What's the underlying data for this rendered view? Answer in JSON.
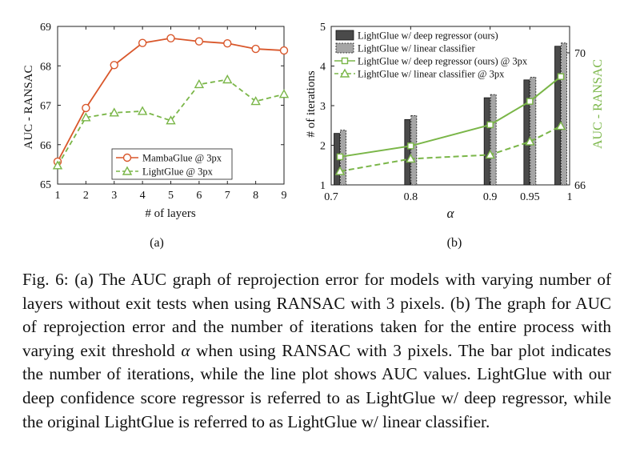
{
  "chart_data": [
    {
      "type": "line",
      "panel_label": "(a)",
      "xlabel": "# of layers",
      "ylabel": "AUC - RANSAC",
      "x": [
        1,
        2,
        3,
        4,
        5,
        6,
        7,
        8,
        9
      ],
      "xlim": [
        1,
        9
      ],
      "ylim": [
        65,
        69
      ],
      "xticks": [
        "1",
        "2",
        "3",
        "4",
        "5",
        "6",
        "7",
        "8",
        "9"
      ],
      "yticks": [
        "65",
        "66",
        "67",
        "68",
        "69"
      ],
      "grid": false,
      "legend_position": "bottom-center",
      "series": [
        {
          "name": "MambaGlue @ 3px",
          "color": "#d9572b",
          "marker": "circle",
          "dash": "solid",
          "values": [
            65.57,
            66.93,
            68.02,
            68.58,
            68.7,
            68.62,
            68.57,
            68.43,
            68.39
          ]
        },
        {
          "name": "LightGlue @ 3px",
          "color": "#7ab648",
          "marker": "triangle",
          "dash": "dashed",
          "values": [
            65.47,
            66.69,
            66.81,
            66.85,
            66.61,
            67.53,
            67.65,
            67.1,
            67.28
          ]
        }
      ]
    },
    {
      "type": "bar",
      "panel_label": "(b)",
      "xlabel": "α",
      "ylabel": "# of iterations",
      "ylabel_right": "AUC - RANSAC",
      "categories": [
        "0.7",
        "0.8",
        "0.9",
        "0.95",
        "1"
      ],
      "x": [
        0.7,
        0.8,
        0.9,
        0.95,
        1.0
      ],
      "xlim": [
        0.7,
        1.0
      ],
      "ylim": [
        1,
        5
      ],
      "ylim_right": [
        66,
        70.8
      ],
      "yticks": [
        "1",
        "2",
        "3",
        "4",
        "5"
      ],
      "yticks_right": [
        "66",
        "70"
      ],
      "grid": false,
      "legend_position": "top-left",
      "bar_series": [
        {
          "name": "LightGlue w/ deep regressor (ours)",
          "color": "#555555",
          "style": "solid",
          "values": [
            2.3,
            2.65,
            3.2,
            3.65,
            4.5
          ]
        },
        {
          "name": "LightGlue w/ linear classifier",
          "color": "#9a9a9a",
          "style": "dashed",
          "values": [
            2.38,
            2.75,
            3.28,
            3.72,
            4.58
          ]
        }
      ],
      "line_series": [
        {
          "name": "LightGlue w/ deep regressor (ours) @ 3px",
          "color": "#7ab648",
          "marker": "square",
          "dash": "solid",
          "axis": "right",
          "values": [
            66.85,
            67.18,
            67.82,
            68.53,
            69.28
          ]
        },
        {
          "name": "LightGlue w/ linear classifier @ 3px",
          "color": "#7ab648",
          "marker": "triangle",
          "dash": "dashed",
          "axis": "right",
          "values": [
            66.41,
            66.79,
            66.91,
            67.31,
            67.78
          ]
        }
      ]
    }
  ],
  "caption": {
    "label": "Fig. 6:",
    "part1": "(a) The AUC graph of reprojection error for models with varying number of layers without exit tests when using RANSAC with 3 pixels. (b) The graph for AUC of reprojection error and the number of iterations taken for the entire process with varying exit threshold",
    "alpha": "α",
    "part2": "when using RANSAC with 3 pixels. The bar plot indicates the number of iterations, while the line plot shows AUC values. LightGlue with our deep confidence score regressor is referred to as LightGlue w/ deep regressor, while the original LightGlue is referred to as LightGlue w/ linear classifier."
  }
}
